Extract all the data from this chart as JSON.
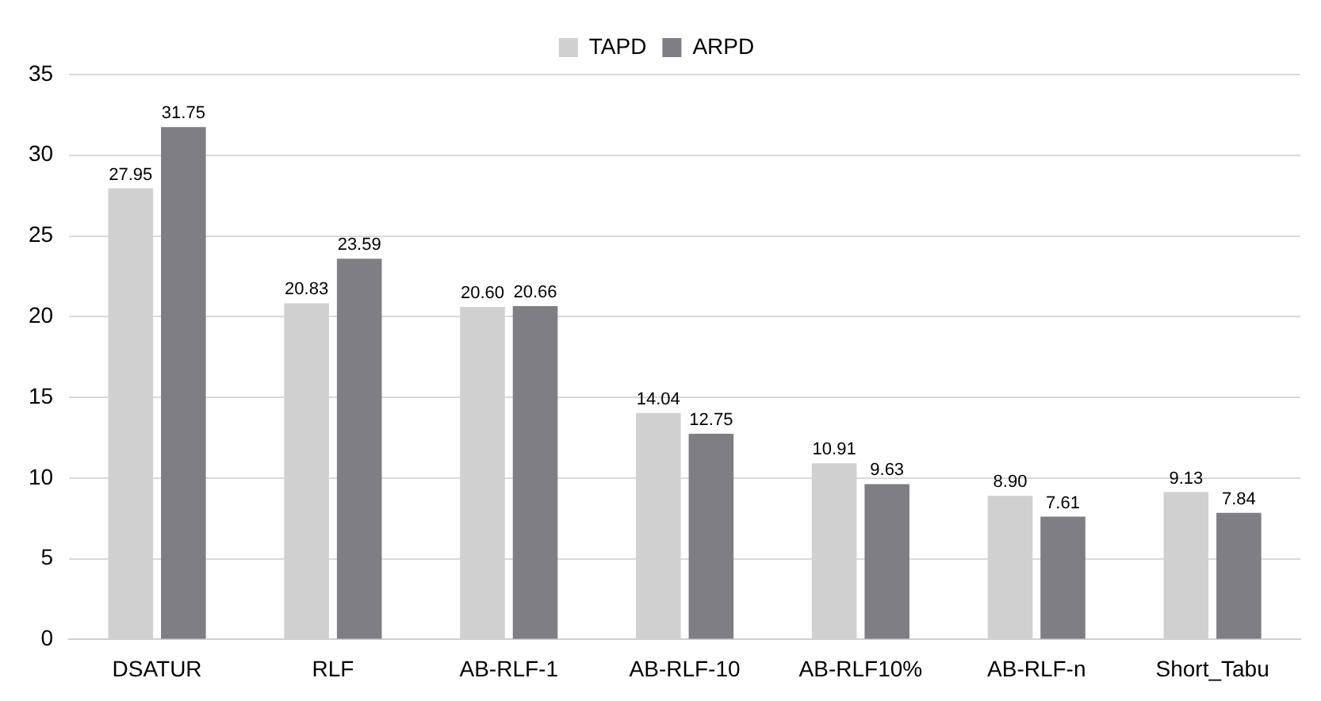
{
  "chart_data": {
    "type": "bar",
    "categories": [
      "DSATUR",
      "RLF",
      "AB-RLF-1",
      "AB-RLF-10",
      "AB-RLF10%",
      "AB-RLF-n",
      "Short_Tabu"
    ],
    "series": [
      {
        "name": "TAPD",
        "color": "#d0d0d0",
        "values": [
          27.95,
          20.83,
          20.6,
          14.04,
          10.91,
          8.9,
          9.13
        ],
        "value_labels": [
          "27.95",
          "20.83",
          "20.60",
          "14.04",
          "10.91",
          "8.90",
          "9.13"
        ]
      },
      {
        "name": "ARPD",
        "color": "#7e7e84",
        "values": [
          31.75,
          23.59,
          20.66,
          12.75,
          9.63,
          7.61,
          7.84
        ],
        "value_labels": [
          "31.75",
          "23.59",
          "20.66",
          "12.75",
          "9.63",
          "7.61",
          "7.84"
        ]
      }
    ],
    "ylim": [
      0,
      35
    ],
    "yticks": [
      0,
      5,
      10,
      15,
      20,
      25,
      30,
      35
    ],
    "grid": "y",
    "legend": "top"
  }
}
